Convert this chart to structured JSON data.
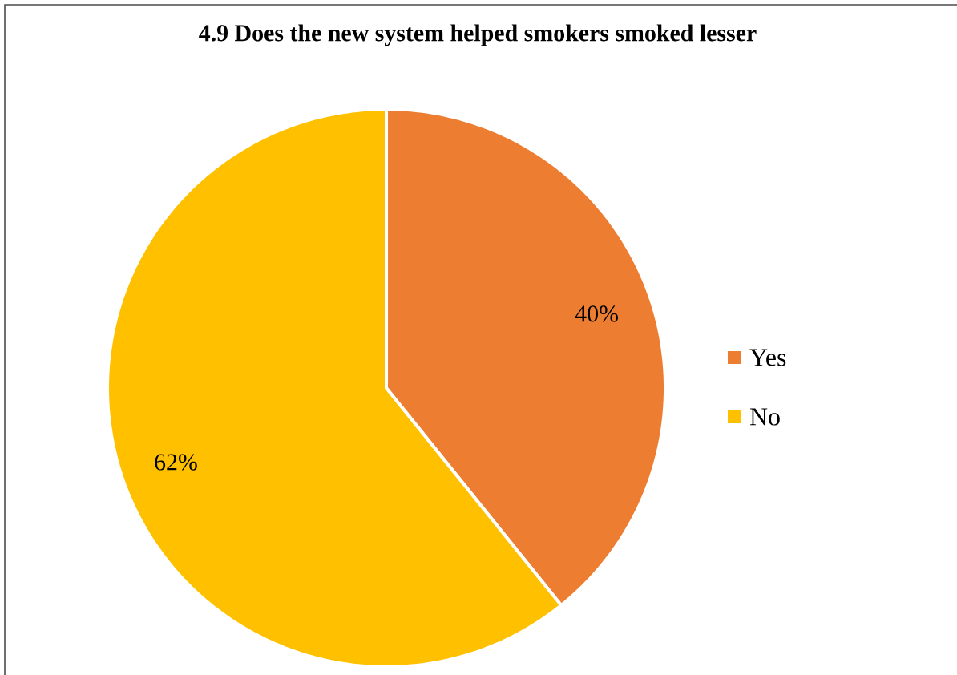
{
  "chart_data": {
    "type": "pie",
    "title": "4.9 Does the new system helped smokers smoked lesser",
    "categories": [
      "Yes",
      "No"
    ],
    "values": [
      40,
      62
    ],
    "colors": [
      "#ed7d31",
      "#ffc000"
    ],
    "value_labels": [
      "40%",
      "62%"
    ],
    "legend": "right"
  }
}
